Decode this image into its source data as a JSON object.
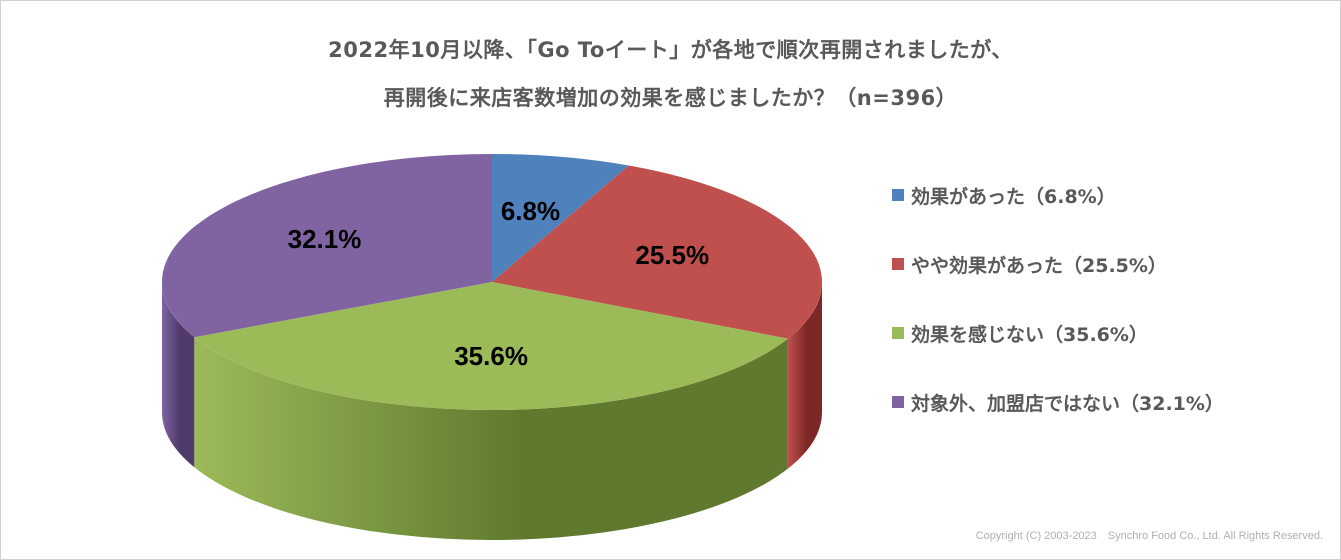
{
  "title_line1": "2022年10月以降、「Go Toイート」が各地で順次再開されましたが、",
  "title_line2": "再開後に来店客数増加の効果を感じましたか？（n=396）",
  "copyright": "Copyright (C) 2003-2023　Synchro Food Co., Ltd. All Rights Reserved.",
  "chart_data": {
    "type": "pie",
    "style": "3d-exploded-none",
    "legend_position": "right",
    "title": "2022年10月以降、「Go Toイート」が各地で順次再開されましたが、再開後に来店客数増加の効果を感じましたか？（n=396）",
    "slices": [
      {
        "label": "効果があった（6.8%）",
        "value": 6.8,
        "data_label": "6.8%",
        "color": "#4f81bd",
        "side_color": "#37598a"
      },
      {
        "label": "やや効果があった（25.5%）",
        "value": 25.5,
        "data_label": "25.5%",
        "color": "#c0504d",
        "side_color": "#7d2826"
      },
      {
        "label": "効果を感じない（35.6%）",
        "value": 35.6,
        "data_label": "35.6%",
        "color": "#9bbb59",
        "side_color": "#5f7a2e"
      },
      {
        "label": "対象外、加盟店ではない（32.1%）",
        "value": 32.1,
        "data_label": "32.1%",
        "color": "#8064a2",
        "side_color": "#4f3a6b"
      }
    ]
  }
}
